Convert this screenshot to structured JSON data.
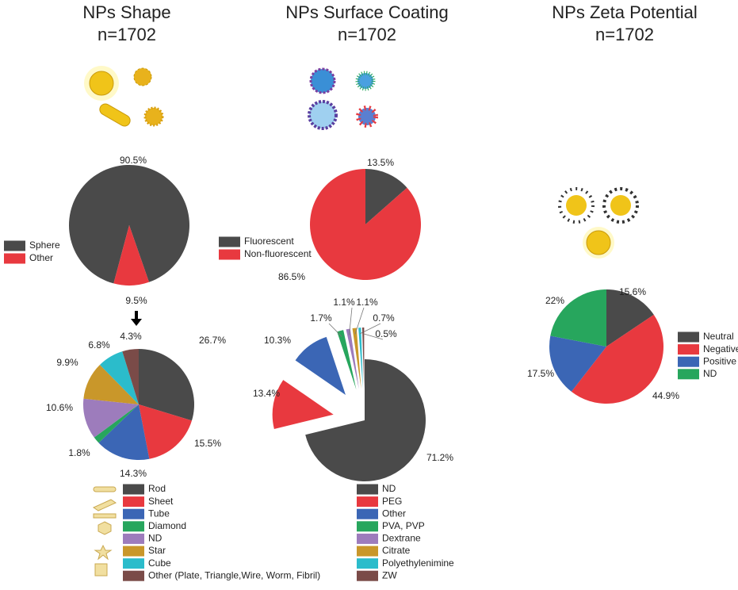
{
  "chart_data": [
    {
      "type": "pie",
      "title": "NPs Shape",
      "subtitle": "n=1702",
      "categories": [
        "Sphere",
        "Other"
      ],
      "values": [
        90.5,
        9.5
      ],
      "value_labels": [
        "90.5%",
        "9.5%"
      ],
      "colors": [
        "#4a4a4a",
        "#e8393f"
      ]
    },
    {
      "type": "pie",
      "categories": [
        "Rod",
        "Sheet",
        "Tube",
        "Diamond",
        "ND",
        "Star",
        "Cube",
        "Other (Plate, Triangle,Wire, Worm, Fibril)"
      ],
      "values": [
        26.7,
        15.5,
        14.3,
        1.8,
        10.6,
        9.9,
        6.8,
        4.3
      ],
      "value_labels": [
        "26.7%",
        "15.5%",
        "14.3%",
        "1.8%",
        "10.6%",
        "9.9%",
        "6.8%",
        "4.3%"
      ],
      "colors": [
        "#4a4a4a",
        "#e8393f",
        "#3b66b5",
        "#27a65d",
        "#9d7cbc",
        "#c9972a",
        "#2bbccb",
        "#7a4b48"
      ]
    },
    {
      "type": "pie",
      "title": "NPs Surface Coating",
      "subtitle": "n=1702",
      "categories": [
        "Fluorescent",
        "Non-fluorescent"
      ],
      "values": [
        13.5,
        86.5
      ],
      "value_labels": [
        "13.5%",
        "86.5%"
      ],
      "colors": [
        "#4a4a4a",
        "#e8393f"
      ]
    },
    {
      "type": "pie",
      "categories": [
        "ND",
        "PEG",
        "Other",
        "PVA, PVP",
        "Dextrane",
        "Citrate",
        "Polyethylenimine",
        "ZW"
      ],
      "values": [
        71.2,
        13.4,
        10.3,
        1.7,
        1.1,
        1.1,
        0.7,
        0.5
      ],
      "value_labels": [
        "71.2%",
        "13.4%",
        "10.3%",
        "1.7%",
        "1.1%",
        "1.1%",
        "0.7%",
        "0.5%"
      ],
      "colors": [
        "#4a4a4a",
        "#e8393f",
        "#3b66b5",
        "#27a65d",
        "#9d7cbc",
        "#c9972a",
        "#2bbccb",
        "#7a4b48"
      ]
    },
    {
      "type": "pie",
      "title": "NPs Zeta Potential",
      "subtitle": "n=1702",
      "categories": [
        "Neutral",
        "Negative",
        "Positive",
        "ND"
      ],
      "values": [
        15.6,
        44.9,
        17.5,
        22
      ],
      "value_labels": [
        "15.6%",
        "44.9%",
        "17.5%",
        "22%"
      ],
      "colors": [
        "#4a4a4a",
        "#e8393f",
        "#3b66b5",
        "#27a65d"
      ]
    }
  ]
}
